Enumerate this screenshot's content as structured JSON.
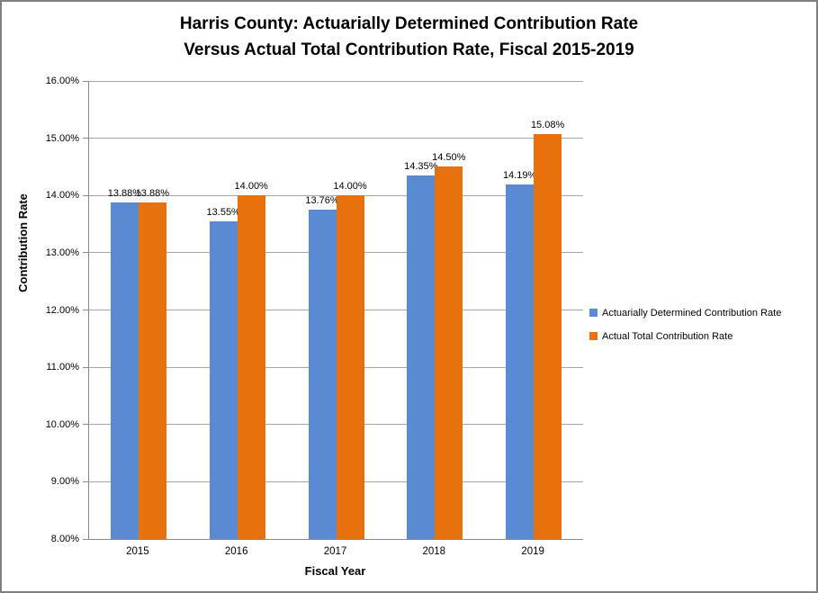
{
  "title": {
    "line1": "Harris County: Actuarially Determined Contribution Rate",
    "line2": "Versus Actual Total Contribution Rate, Fiscal 2015-2019"
  },
  "chart_data": {
    "type": "bar",
    "title": "Harris County: Actuarially Determined Contribution Rate Versus Actual Total Contribution Rate, Fiscal 2015-2019",
    "xlabel": "Fiscal Year",
    "ylabel": "Contribution Rate",
    "categories": [
      "2015",
      "2016",
      "2017",
      "2018",
      "2019"
    ],
    "series": [
      {
        "name": "Actuarially Determined Contribution Rate",
        "color": "#5A8AD2",
        "values": [
          13.88,
          13.55,
          13.76,
          14.35,
          14.19
        ],
        "labels": [
          "13.88%",
          "13.55%",
          "13.76%",
          "14.35%",
          "14.19%"
        ]
      },
      {
        "name": "Actual Total Contribution Rate",
        "color": "#E7710D",
        "values": [
          13.88,
          14.0,
          14.0,
          14.5,
          15.08
        ],
        "labels": [
          "13.88%",
          "14.00%",
          "14.00%",
          "14.50%",
          "15.08%"
        ]
      }
    ],
    "ylim": [
      8,
      16
    ],
    "yticks": [
      {
        "value": 8,
        "label": "8.00%"
      },
      {
        "value": 9,
        "label": "9.00%"
      },
      {
        "value": 10,
        "label": "10.00%"
      },
      {
        "value": 11,
        "label": "11.00%"
      },
      {
        "value": 12,
        "label": "12.00%"
      },
      {
        "value": 13,
        "label": "13.00%"
      },
      {
        "value": 14,
        "label": "14.00%"
      },
      {
        "value": 15,
        "label": "15.00%"
      },
      {
        "value": 16,
        "label": "16.00%"
      }
    ],
    "grid": true,
    "legend_position": "right"
  },
  "colors": {
    "gridline": "#A6A6A6",
    "axis": "#898989",
    "frame_border": "#808080",
    "text": "#000000"
  }
}
